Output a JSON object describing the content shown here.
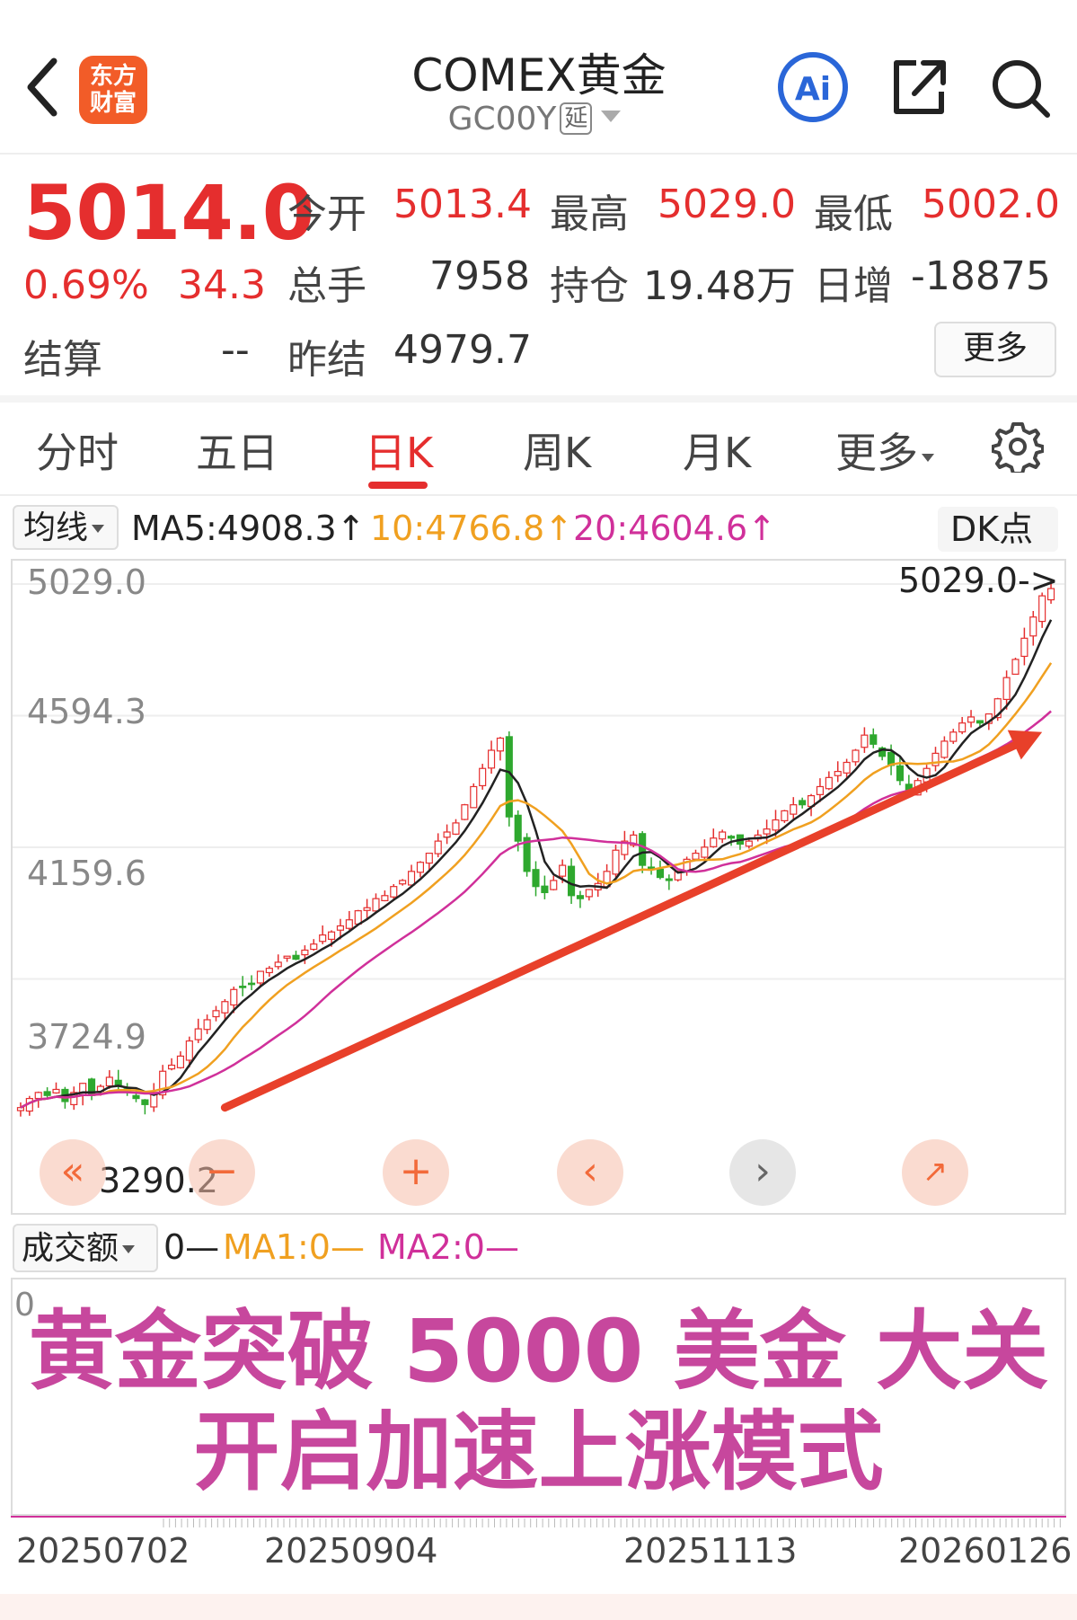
{
  "header": {
    "back_icon": "chevron-left-icon",
    "logo_line1": "东方",
    "logo_line2": "财富",
    "title": "COMEX黄金",
    "code": "GC00Y",
    "delay_tag": "延",
    "ai_label": "Ai",
    "share_icon": "share-icon",
    "search_icon": "search-icon"
  },
  "quote": {
    "price": "5014.0",
    "change_pct": "0.69%",
    "change": "34.3",
    "open_label": "今开",
    "open": "5013.4",
    "high_label": "最高",
    "high": "5029.0",
    "low_label": "最低",
    "low": "5002.0",
    "volume_label": "总手",
    "volume": "7958",
    "oi_label": "持仓",
    "oi": "19.48万",
    "daily_inc_label": "日增",
    "daily_inc": "-18875",
    "settle_label": "结算",
    "settle": "--",
    "prev_settle_label": "昨结",
    "prev_settle": "4979.7",
    "more_button": "更多"
  },
  "tabs": [
    {
      "label": "分时"
    },
    {
      "label": "五日"
    },
    {
      "label": "日K",
      "active": true
    },
    {
      "label": "周K"
    },
    {
      "label": "月K"
    },
    {
      "label": "更多"
    }
  ],
  "ma": {
    "select": "均线",
    "ma5": "MA5:4908.3",
    "ma10": "10:4766.8",
    "ma20": "20:4604.6",
    "arrow": "↑",
    "dk_button": "DK点",
    "color_ma5": "#222222",
    "color_ma10": "#f0a020",
    "color_ma20": "#d0309a"
  },
  "chart_data": {
    "type": "candlestick",
    "y_ticks": [
      "5029.0",
      "4594.3",
      "4159.6",
      "3724.9"
    ],
    "y_range": [
      3290.2,
      5029.0
    ],
    "max_label": "5029.0->",
    "min_label": "3290.2",
    "x_ticks": [
      "20250702",
      "20250904",
      "20251113",
      "20260126"
    ],
    "up_color": "#e52e2e",
    "down_color": "#2ea82e",
    "trend_color": "#e8402a",
    "close_path": [
      3300,
      3330,
      3350,
      3340,
      3360,
      3320,
      3350,
      3380,
      3340,
      3370,
      3400,
      3370,
      3350,
      3330,
      3310,
      3350,
      3420,
      3440,
      3470,
      3520,
      3560,
      3590,
      3620,
      3650,
      3690,
      3700,
      3710,
      3750,
      3760,
      3780,
      3800,
      3790,
      3820,
      3840,
      3870,
      3880,
      3900,
      3920,
      3950,
      3960,
      3990,
      4000,
      4030,
      4050,
      4080,
      4110,
      4140,
      4180,
      4210,
      4240,
      4300,
      4360,
      4420,
      4480,
      4520,
      4260,
      4180,
      4080,
      4030,
      4010,
      4050,
      4100,
      4000,
      3990,
      4020,
      4040,
      4080,
      4150,
      4180,
      4200,
      4100,
      4090,
      4060,
      4050,
      4080,
      4120,
      4140,
      4160,
      4190,
      4210,
      4190,
      4170,
      4180,
      4200,
      4220,
      4250,
      4280,
      4300,
      4300,
      4330,
      4360,
      4390,
      4410,
      4440,
      4480,
      4530,
      4500,
      4460,
      4430,
      4380,
      4340,
      4380,
      4420,
      4470,
      4510,
      4540,
      4570,
      4590,
      4570,
      4600,
      4650,
      4720,
      4780,
      4850,
      4920,
      4990,
      5014
    ]
  },
  "volume": {
    "select": "成交额",
    "v0": "0—",
    "ma1": "MA1:0—",
    "ma2": "MA2:0—",
    "zero_label": "0",
    "headline1": "黄金突破 5000 美金 大关",
    "headline2": "开启加速上涨模式"
  }
}
